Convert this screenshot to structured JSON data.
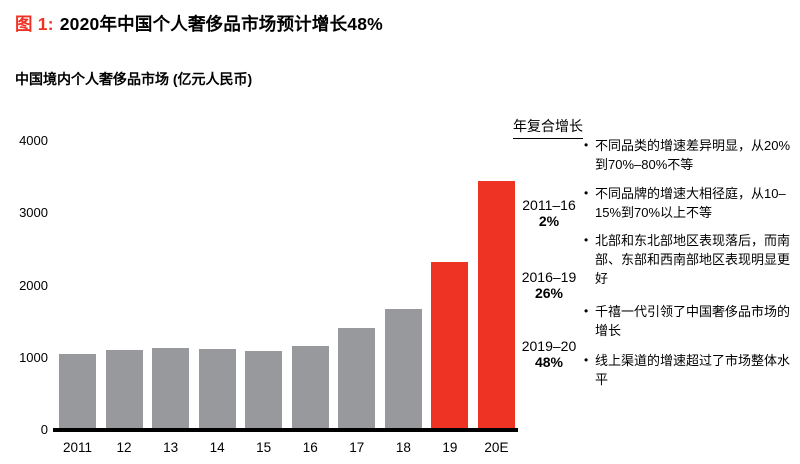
{
  "figure": {
    "label": "图 1:",
    "title": "2020年中国个人奢侈品市场预计增长48%",
    "subtitle": "中国境内个人奢侈品市场 (亿元人民币)"
  },
  "chart_data": {
    "type": "bar",
    "title": "中国境内个人奢侈品市场 (亿元人民币)",
    "categories": [
      "2011",
      "12",
      "13",
      "14",
      "15",
      "16",
      "17",
      "18",
      "19",
      "20E"
    ],
    "values": [
      1050,
      1110,
      1140,
      1120,
      1100,
      1160,
      1410,
      1680,
      2320,
      3440
    ],
    "bar_colors": [
      "gray",
      "gray",
      "gray",
      "gray",
      "gray",
      "gray",
      "gray",
      "gray",
      "red",
      "red"
    ],
    "xlabel": "",
    "ylabel": "",
    "ylim": [
      0,
      4000
    ],
    "yticks": [
      0,
      1000,
      2000,
      3000,
      4000
    ],
    "grid": false,
    "legend": "none",
    "colors": {
      "gray": "#97999C",
      "red": "#EE3224",
      "axis": "#000000"
    }
  },
  "cagr_panel": {
    "header": "年复合增长",
    "entries": [
      {
        "period": "2011–16",
        "value": "2%"
      },
      {
        "period": "2016–19",
        "value": "26%"
      },
      {
        "period": "2019–20",
        "value": "48%"
      }
    ]
  },
  "bullets": [
    "不同品类的增速差异明显，从20%到70%–80%不等",
    "不同品牌的增速大相径庭，从10–15%到70%以上不等",
    "北部和东北部地区表现落后，而南部、东部和西南部地区表现明显更好",
    "千禧一代引领了中国奢侈品市场的增长",
    "线上渠道的增速超过了市场整体水平"
  ]
}
